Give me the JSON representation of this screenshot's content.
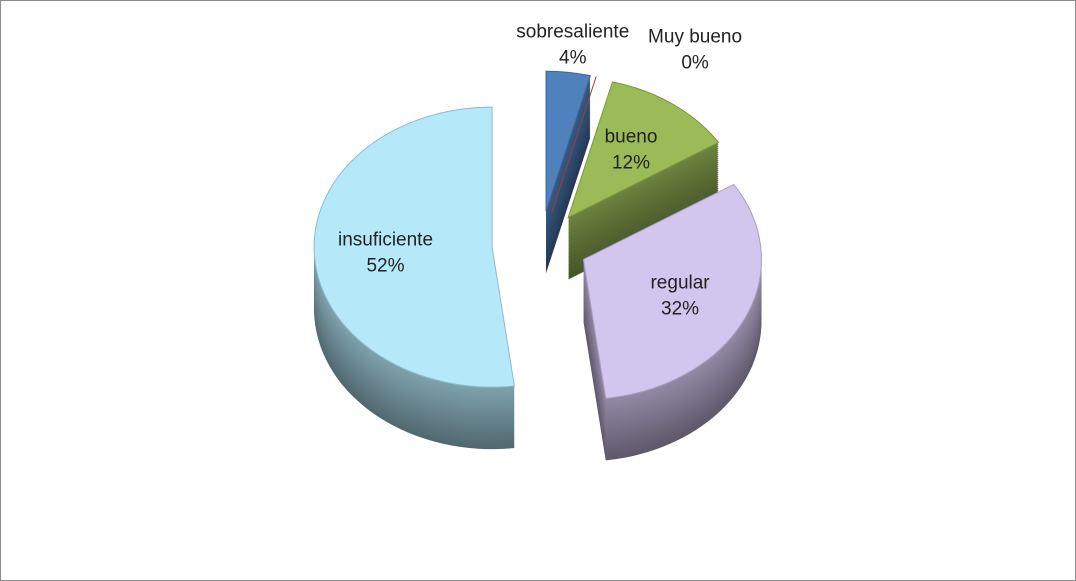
{
  "chart_data": {
    "type": "pie3d",
    "categories": [
      "sobresaliente",
      "Muy bueno",
      "bueno",
      "regular",
      "insuficiente"
    ],
    "values": [
      4,
      0,
      12,
      32,
      52
    ],
    "value_labels": [
      "4%",
      "0%",
      "12%",
      "32%",
      "52%"
    ],
    "colors": [
      "#4f81bd",
      "#c0504d",
      "#9bbb59",
      "#d2c5ee",
      "#b5e8f8"
    ]
  }
}
